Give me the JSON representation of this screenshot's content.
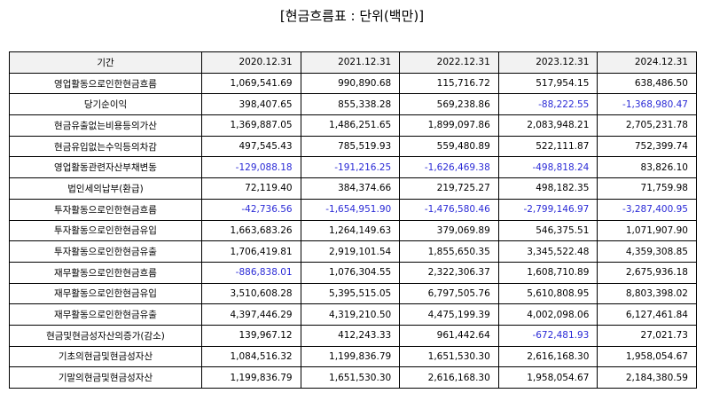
{
  "title": "[현금흐름표 : 단위(백만)]",
  "colors": {
    "negative": "#2a2ad6",
    "header_bg": "#f2f2f2"
  },
  "table": {
    "headers": [
      "기간",
      "2020.12.31",
      "2021.12.31",
      "2022.12.31",
      "2023.12.31",
      "2024.12.31"
    ],
    "rows": [
      {
        "label": "영업활동으로인한현금흐름",
        "values": [
          "1,069,541.69",
          "990,890.68",
          "115,716.72",
          "517,954.15",
          "638,486.50"
        ]
      },
      {
        "label": "당기순이익",
        "values": [
          "398,407.65",
          "855,338.28",
          "569,238.86",
          "-88,222.55",
          "-1,368,980.47"
        ]
      },
      {
        "label": "현금유출없는비용등의가산",
        "values": [
          "1,369,887.05",
          "1,486,251.65",
          "1,899,097.86",
          "2,083,948.21",
          "2,705,231.78"
        ]
      },
      {
        "label": "현금유입없는수익등의차감",
        "values": [
          "497,545.43",
          "785,519.93",
          "559,480.89",
          "522,111.87",
          "752,399.74"
        ]
      },
      {
        "label": "영업활동관련자산부채변동",
        "values": [
          "-129,088.18",
          "-191,216.25",
          "-1,626,469.38",
          "-498,818.24",
          "83,826.10"
        ]
      },
      {
        "label": "법인세의납부(환급)",
        "values": [
          "72,119.40",
          "384,374.66",
          "219,725.27",
          "498,182.35",
          "71,759.98"
        ]
      },
      {
        "label": "투자활동으로인한현금흐름",
        "values": [
          "-42,736.56",
          "-1,654,951.90",
          "-1,476,580.46",
          "-2,799,146.97",
          "-3,287,400.95"
        ]
      },
      {
        "label": "투자활동으로인한현금유입",
        "values": [
          "1,663,683.26",
          "1,264,149.63",
          "379,069.89",
          "546,375.51",
          "1,071,907.90"
        ]
      },
      {
        "label": "투자활동으로인한현금유출",
        "values": [
          "1,706,419.81",
          "2,919,101.54",
          "1,855,650.35",
          "3,345,522.48",
          "4,359,308.85"
        ]
      },
      {
        "label": "재무활동으로인한현금흐름",
        "values": [
          "-886,838.01",
          "1,076,304.55",
          "2,322,306.37",
          "1,608,710.89",
          "2,675,936.18"
        ]
      },
      {
        "label": "재무활동으로인한현금유입",
        "values": [
          "3,510,608.28",
          "5,395,515.05",
          "6,797,505.76",
          "5,610,808.95",
          "8,803,398.02"
        ]
      },
      {
        "label": "재무활동으로인한현금유출",
        "values": [
          "4,397,446.29",
          "4,319,210.50",
          "4,475,199.39",
          "4,002,098.06",
          "6,127,461.84"
        ]
      },
      {
        "label": "현금및현금성자산의증가(감소)",
        "values": [
          "139,967.12",
          "412,243.33",
          "961,442.64",
          "-672,481.93",
          "27,021.73"
        ]
      },
      {
        "label": "기초의현금및현금성자산",
        "values": [
          "1,084,516.32",
          "1,199,836.79",
          "1,651,530.30",
          "2,616,168.30",
          "1,958,054.67"
        ]
      },
      {
        "label": "기말의현금및현금성자산",
        "values": [
          "1,199,836.79",
          "1,651,530.30",
          "2,616,168.30",
          "1,958,054.67",
          "2,184,380.59"
        ]
      }
    ]
  }
}
